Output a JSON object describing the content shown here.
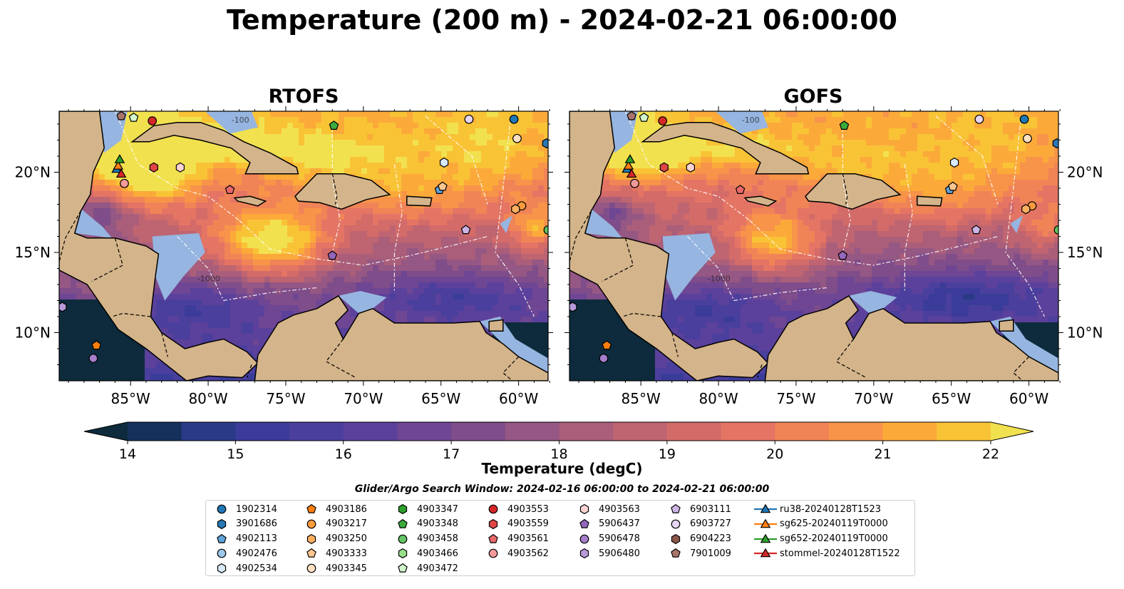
{
  "title": "Temperature (200 m) - 2024-02-21 06:00:00",
  "panels": [
    {
      "title": "RTOFS"
    },
    {
      "title": "GOFS"
    }
  ],
  "map": {
    "lon_range": [
      -89.6,
      -58.1
    ],
    "lat_range": [
      7.0,
      23.8
    ],
    "lon_ticks": [
      "85°W",
      "80°W",
      "75°W",
      "70°W",
      "65°W",
      "60°W"
    ],
    "lat_ticks": [
      "20°N",
      "15°N",
      "10°N"
    ],
    "contour_labels": [
      "-1000",
      "-100"
    ],
    "colors": {
      "land": "#d4b48a",
      "shelf": "#96b5e0",
      "deep": "#0c2438"
    }
  },
  "colorbar": {
    "label": "Temperature (degC)",
    "ticks": [
      "14",
      "15",
      "16",
      "17",
      "18",
      "19",
      "20",
      "21",
      "22"
    ],
    "min": 14,
    "max": 22,
    "step": 0.5,
    "colors": [
      "#0d2b3c",
      "#16305c",
      "#2b3a87",
      "#3b3c9a",
      "#4b3f9d",
      "#5b419b",
      "#6e4694",
      "#7f4d8a",
      "#955783",
      "#aa5e7a",
      "#bf6571",
      "#d36b69",
      "#e47564",
      "#f08456",
      "#f79449",
      "#fbaa3a",
      "#f9c336",
      "#f2e14f"
    ]
  },
  "search_window": "Glider/Argo Search Window: 2024-02-16 06:00:00 to 2024-02-21 06:00:00",
  "legend": {
    "columns": [
      [
        {
          "label": "1902314",
          "marker": "circle",
          "color": "#1f77b4"
        },
        {
          "label": "3901686",
          "marker": "hexagon",
          "color": "#2a78b6"
        },
        {
          "label": "4902113",
          "marker": "pentagon",
          "color": "#5ea5db"
        },
        {
          "label": "4902476",
          "marker": "circle",
          "color": "#9cc9ec"
        },
        {
          "label": "4902534",
          "marker": "hexagon",
          "color": "#d8eaf9"
        }
      ],
      [
        {
          "label": "4903186",
          "marker": "pentagon",
          "color": "#ff7f0e"
        },
        {
          "label": "4903217",
          "marker": "circle",
          "color": "#ff9c3e"
        },
        {
          "label": "4903250",
          "marker": "hexagon",
          "color": "#ffb05f"
        },
        {
          "label": "4903333",
          "marker": "pentagon",
          "color": "#ffc690"
        },
        {
          "label": "4903345",
          "marker": "circle",
          "color": "#ffe1c2"
        }
      ],
      [
        {
          "label": "4903347",
          "marker": "hexagon",
          "color": "#2ca02c"
        },
        {
          "label": "4903348",
          "marker": "pentagon",
          "color": "#3cab3c"
        },
        {
          "label": "4903458",
          "marker": "circle",
          "color": "#63c563"
        },
        {
          "label": "4903466",
          "marker": "hexagon",
          "color": "#98df8a"
        },
        {
          "label": "4903472",
          "marker": "pentagon",
          "color": "#d2f5cc"
        }
      ],
      [
        {
          "label": "4903553",
          "marker": "circle",
          "color": "#d62728"
        },
        {
          "label": "4903559",
          "marker": "hexagon",
          "color": "#df4545"
        },
        {
          "label": "4903561",
          "marker": "pentagon",
          "color": "#e8686a"
        },
        {
          "label": "4903562",
          "marker": "circle",
          "color": "#f39a9a"
        }
      ],
      [
        {
          "label": "4903563",
          "marker": "hexagon",
          "color": "#fcd3d3"
        },
        {
          "label": "5906437",
          "marker": "pentagon",
          "color": "#9467bd"
        },
        {
          "label": "5906478",
          "marker": "circle",
          "color": "#a57fcb"
        },
        {
          "label": "5906480",
          "marker": "hexagon",
          "color": "#b89ad8"
        }
      ],
      [
        {
          "label": "6903111",
          "marker": "pentagon",
          "color": "#cdb6e6"
        },
        {
          "label": "6903727",
          "marker": "circle",
          "color": "#e6d6f3"
        },
        {
          "label": "6904223",
          "marker": "hexagon",
          "color": "#8c564b"
        },
        {
          "label": "7901009",
          "marker": "pentagon",
          "color": "#a9756b"
        }
      ],
      [
        {
          "label": "ru38-20240128T1523",
          "marker": "triangle",
          "color": "#1f77b4"
        },
        {
          "label": "sg625-20240119T0000",
          "marker": "triangle",
          "color": "#ff7f0e"
        },
        {
          "label": "sg652-20240119T0000",
          "marker": "triangle",
          "color": "#2ca02c"
        },
        {
          "label": "stommel-20240128T1522",
          "marker": "triangle",
          "color": "#d62728"
        }
      ]
    ]
  },
  "markers": [
    {
      "lon": -60.3,
      "lat": 23.3,
      "marker": "circle",
      "color": "#1f77b4"
    },
    {
      "lon": -58.2,
      "lat": 21.8,
      "marker": "hexagon",
      "color": "#2a78b6"
    },
    {
      "lon": -65.1,
      "lat": 18.9,
      "marker": "pentagon",
      "color": "#5ea5db"
    },
    {
      "lon": -64.8,
      "lat": 20.6,
      "marker": "hexagon",
      "color": "#d8eaf9"
    },
    {
      "lon": -87.2,
      "lat": 9.2,
      "marker": "pentagon",
      "color": "#ff7f0e"
    },
    {
      "lon": -59.8,
      "lat": 17.9,
      "marker": "circle",
      "color": "#ff9c3e"
    },
    {
      "lon": -60.2,
      "lat": 17.7,
      "marker": "hexagon",
      "color": "#ffb05f"
    },
    {
      "lon": -64.9,
      "lat": 19.1,
      "marker": "pentagon",
      "color": "#ffc690"
    },
    {
      "lon": -60.1,
      "lat": 22.1,
      "marker": "circle",
      "color": "#ffe1c2"
    },
    {
      "lon": -71.9,
      "lat": 22.9,
      "marker": "pentagon",
      "color": "#3cab3c"
    },
    {
      "lon": -58.1,
      "lat": 16.4,
      "marker": "circle",
      "color": "#63c563"
    },
    {
      "lon": -84.8,
      "lat": 23.4,
      "marker": "pentagon",
      "color": "#d2f5cc"
    },
    {
      "lon": -83.6,
      "lat": 23.2,
      "marker": "circle",
      "color": "#d62728"
    },
    {
      "lon": -83.5,
      "lat": 20.3,
      "marker": "hexagon",
      "color": "#df4545"
    },
    {
      "lon": -78.6,
      "lat": 18.9,
      "marker": "pentagon",
      "color": "#e8686a"
    },
    {
      "lon": -85.4,
      "lat": 19.3,
      "marker": "circle",
      "color": "#f39a9a"
    },
    {
      "lon": -81.8,
      "lat": 20.3,
      "marker": "hexagon",
      "color": "#fcd3d3"
    },
    {
      "lon": -72.0,
      "lat": 14.8,
      "marker": "pentagon",
      "color": "#9467bd"
    },
    {
      "lon": -87.4,
      "lat": 8.4,
      "marker": "circle",
      "color": "#a57fcb"
    },
    {
      "lon": -89.4,
      "lat": 11.6,
      "marker": "hexagon",
      "color": "#b89ad8"
    },
    {
      "lon": -63.4,
      "lat": 16.4,
      "marker": "pentagon",
      "color": "#cdb6e6"
    },
    {
      "lon": -63.2,
      "lat": 23.3,
      "marker": "circle",
      "color": "#e6d6f3"
    },
    {
      "lon": -85.6,
      "lat": 23.5,
      "marker": "pentagon",
      "color": "#a9756b"
    },
    {
      "lon": -85.9,
      "lat": 20.2,
      "marker": "triangle",
      "color": "#1f77b4"
    },
    {
      "lon": -85.8,
      "lat": 20.4,
      "marker": "triangle",
      "color": "#ff7f0e"
    },
    {
      "lon": -85.7,
      "lat": 20.8,
      "marker": "triangle",
      "color": "#2ca02c"
    },
    {
      "lon": -85.6,
      "lat": 19.9,
      "marker": "triangle",
      "color": "#d62728"
    }
  ]
}
